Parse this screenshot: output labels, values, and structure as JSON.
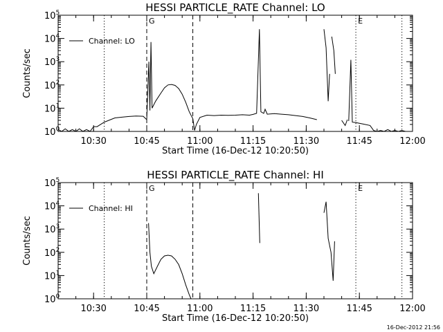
{
  "stamp": "16-Dec-2012 21:56",
  "chart_data": [
    {
      "type": "line",
      "title": "HESSI PARTICLE_RATE Channel: LO",
      "xlabel": "Start Time (16-Dec-12 10:20:50)",
      "ylabel": "Counts/sec",
      "y_scale": "log",
      "xlim": [
        "10:20",
        "12:00"
      ],
      "ylim": [
        1,
        100000
      ],
      "x_ticks": [
        "10:30",
        "10:45",
        "11:00",
        "11:15",
        "11:30",
        "11:45",
        "12:00"
      ],
      "y_ticks": [
        "10^0",
        "10^1",
        "10^2",
        "10^3",
        "10^4",
        "10^5"
      ],
      "legend": "top-left",
      "vlines": [
        {
          "x": "10:33",
          "style": "dotted"
        },
        {
          "x": "10:45",
          "style": "dashed",
          "label": "G"
        },
        {
          "x": "10:58",
          "style": "dashed"
        },
        {
          "x": "11:44",
          "style": "dotted",
          "label": "E"
        },
        {
          "x": "11:57",
          "style": "dotted"
        }
      ],
      "series": [
        {
          "name": "Channel: LO",
          "segments": [
            [
              [
                "10:20",
                1.2
              ],
              [
                "10:21",
                0.8
              ],
              [
                "10:22",
                1.3
              ],
              [
                "10:23",
                0.8
              ],
              [
                "10:24",
                1.2
              ],
              [
                "10:25",
                0.9
              ],
              [
                "10:26",
                1.3
              ],
              [
                "10:27",
                0.8
              ],
              [
                "10:28",
                1.2
              ],
              [
                "10:29",
                0.9
              ],
              [
                "10:30",
                1.6
              ],
              [
                "10:31",
                1.6
              ],
              [
                "10:33",
                2.5
              ],
              [
                "10:36",
                3.8
              ],
              [
                "10:38",
                4.1
              ],
              [
                "10:40",
                4.4
              ],
              [
                "10:42",
                4.6
              ],
              [
                "10:44",
                4.5
              ],
              [
                "10:45",
                3.2
              ],
              [
                "10:45.6",
                1000
              ],
              [
                "10:45.9",
                8
              ],
              [
                "10:46.2",
                7000
              ],
              [
                "10:46.5",
                10
              ],
              [
                "10:47.5",
                20
              ],
              [
                "10:49",
                45
              ],
              [
                "10:50",
                75
              ],
              [
                "10:51",
                100
              ],
              [
                "10:52",
                105
              ],
              [
                "10:53",
                95
              ],
              [
                "10:54",
                70
              ],
              [
                "10:55",
                40
              ],
              [
                "10:56",
                18
              ],
              [
                "10:57",
                7
              ],
              [
                "10:58",
                3.5
              ],
              [
                "10:58.5",
                1.1
              ],
              [
                "10:59",
                2.0
              ],
              [
                "11:00",
                4.0
              ],
              [
                "11:02",
                5
              ],
              [
                "11:04",
                4.8
              ],
              [
                "11:06",
                5
              ],
              [
                "11:08",
                4.9
              ],
              [
                "11:10",
                5
              ],
              [
                "11:12",
                5.2
              ],
              [
                "11:14",
                5
              ],
              [
                "11:15",
                5.4
              ],
              [
                "11:16",
                6
              ],
              [
                "11:16.8",
                25000
              ],
              [
                "11:17.2",
                7
              ],
              [
                "11:18",
                6
              ],
              [
                "11:18.4",
                9
              ],
              [
                "11:19",
                5.5
              ],
              [
                "11:21",
                5.8
              ],
              [
                "11:23",
                5.5
              ],
              [
                "11:25",
                5.2
              ],
              [
                "11:27",
                4.8
              ],
              [
                "11:29",
                4.4
              ],
              [
                "11:31",
                3.8
              ],
              [
                "11:33",
                3.2
              ]
            ],
            [
              [
                "11:35",
                25000
              ],
              [
                "11:35.6",
                4000
              ],
              [
                "11:36.2",
                20
              ],
              [
                "11:36.6",
                300
              ]
            ],
            [
              [
                "11:37.2",
                12000
              ],
              [
                "11:37.8",
                3000
              ],
              [
                "11:38.2",
                300
              ]
            ],
            [
              [
                "11:40",
                3
              ],
              [
                "11:41",
                1.8
              ],
              [
                "11:41.6",
                3.2
              ]
            ],
            [
              [
                "11:42",
                2.8
              ],
              [
                "11:42.6",
                1200
              ],
              [
                "11:43",
                2.5
              ],
              [
                "11:44",
                2.4
              ],
              [
                "11:46",
                2.1
              ],
              [
                "11:48",
                1.8
              ],
              [
                "11:49",
                1.1
              ],
              [
                "11:50",
                0.8
              ],
              [
                "11:51",
                1.1
              ],
              [
                "11:52",
                0.8
              ],
              [
                "11:53",
                1.2
              ],
              [
                "11:54",
                0.8
              ],
              [
                "11:55",
                1.1
              ],
              [
                "11:56",
                0.9
              ],
              [
                "11:57",
                1.1
              ],
              [
                "11:58",
                0.9
              ]
            ]
          ]
        }
      ]
    },
    {
      "type": "line",
      "title": "HESSI PARTICLE_RATE Channel: HI",
      "xlabel": "Start Time (16-Dec-12 10:20:50)",
      "ylabel": "Counts/sec",
      "y_scale": "log",
      "xlim": [
        "10:20",
        "12:00"
      ],
      "ylim": [
        1,
        100000
      ],
      "x_ticks": [
        "10:30",
        "10:45",
        "11:00",
        "11:15",
        "11:30",
        "11:45",
        "12:00"
      ],
      "y_ticks": [
        "10^0",
        "10^1",
        "10^2",
        "10^3",
        "10^4",
        "10^5"
      ],
      "legend": "top-left",
      "vlines": [
        {
          "x": "10:33",
          "style": "dotted"
        },
        {
          "x": "10:45",
          "style": "dashed",
          "label": "G"
        },
        {
          "x": "10:58",
          "style": "dashed"
        },
        {
          "x": "11:44",
          "style": "dotted",
          "label": "E"
        },
        {
          "x": "11:57",
          "style": "dotted"
        }
      ],
      "series": [
        {
          "name": "Channel: HI",
          "segments": [
            [
              [
                "10:45.5",
                1800
              ],
              [
                "10:45.9",
                100
              ],
              [
                "10:46.3",
                25
              ],
              [
                "10:47",
                12
              ],
              [
                "10:48",
                25
              ],
              [
                "10:49",
                50
              ],
              [
                "10:50",
                70
              ],
              [
                "10:51",
                75
              ],
              [
                "10:52",
                70
              ],
              [
                "10:53",
                50
              ],
              [
                "10:54",
                30
              ],
              [
                "10:55",
                12
              ],
              [
                "10:56",
                4
              ],
              [
                "10:57",
                1.5
              ],
              [
                "10:57.5",
                0.8
              ]
            ],
            [
              [
                "11:16.5",
                35000
              ],
              [
                "11:16.9",
                250
              ]
            ],
            [
              [
                "11:35",
                5000
              ],
              [
                "11:35.6",
                15000
              ],
              [
                "11:36.2",
                400
              ],
              [
                "11:37",
                100
              ],
              [
                "11:37.6",
                6
              ],
              [
                "11:38",
                300
              ]
            ]
          ]
        }
      ]
    }
  ]
}
